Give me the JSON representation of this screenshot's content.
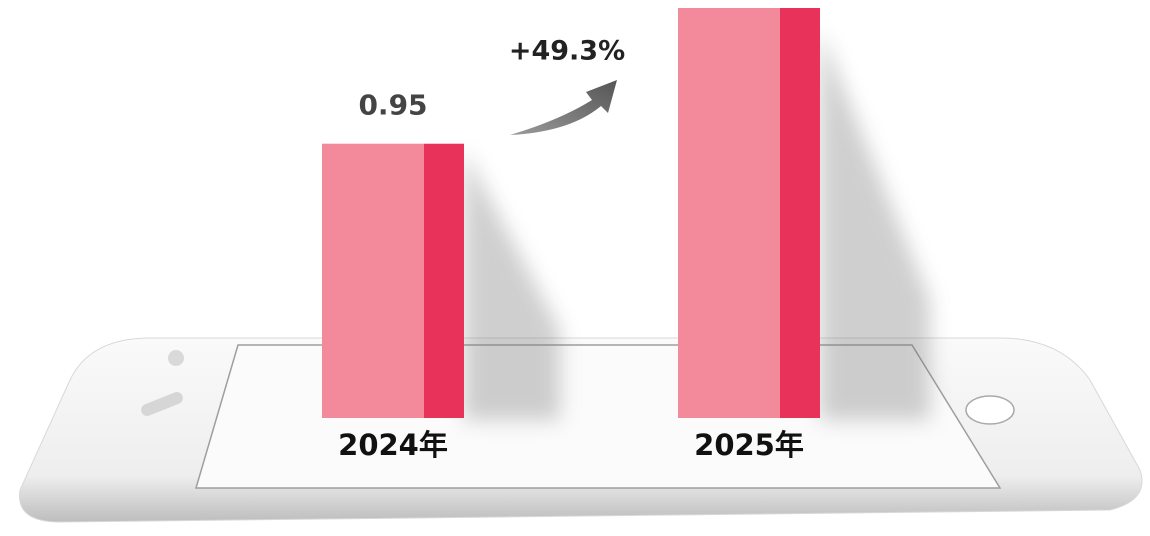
{
  "chart_data": {
    "type": "bar",
    "categories": [
      "2024年",
      "2025年"
    ],
    "values": [
      0.95,
      1.42
    ],
    "value_labels": [
      "0.95",
      null
    ],
    "annotation": "+49.3%",
    "color": "#f28a9c",
    "side_color": "#e8325a"
  }
}
